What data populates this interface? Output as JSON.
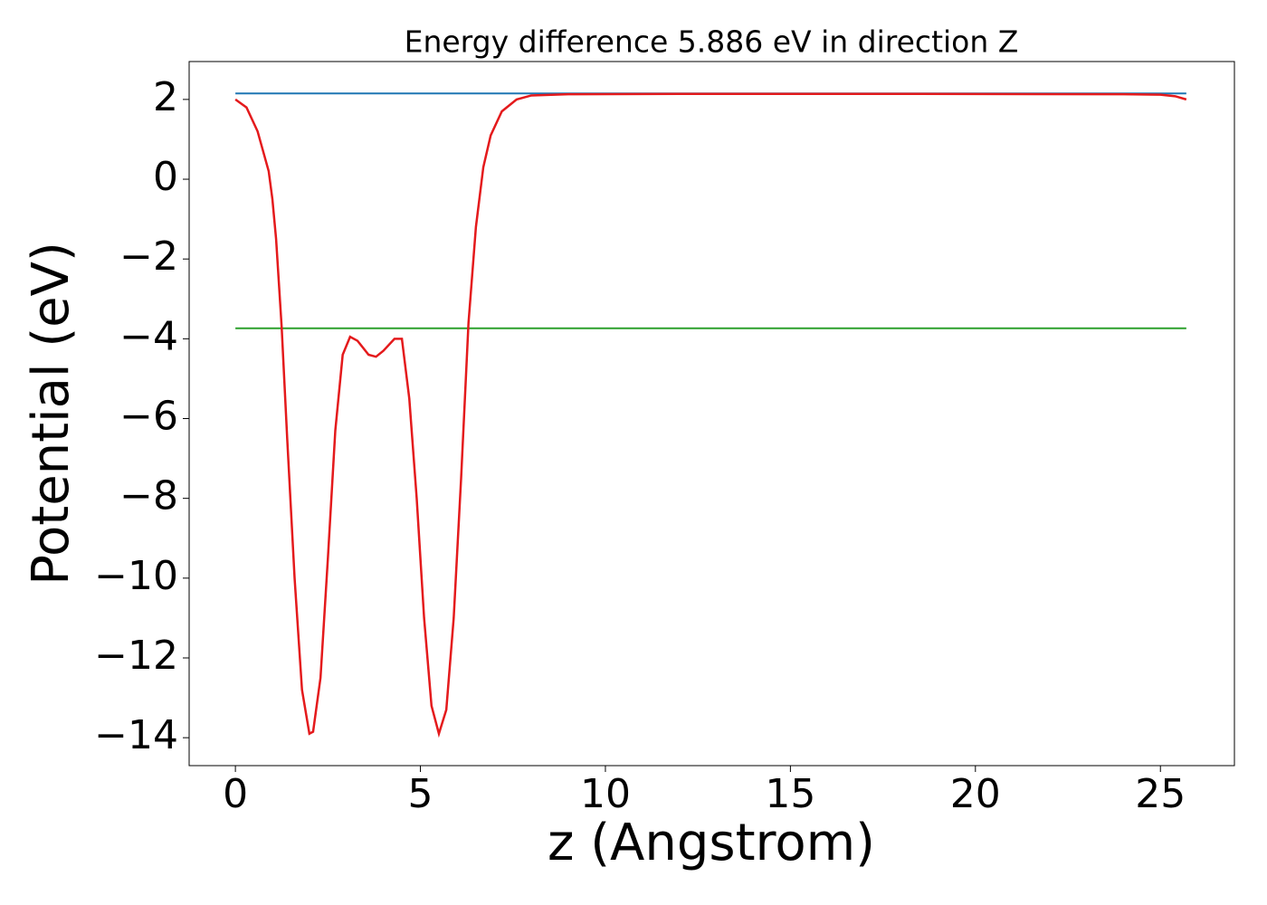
{
  "chart_data": {
    "type": "line",
    "title": "Energy difference 5.886 eV in direction Z",
    "x_label": "z (Angstrom)",
    "y_label": "Potential (eV)",
    "xlim": [
      -1.25,
      27.0
    ],
    "ylim": [
      -14.7,
      2.95
    ],
    "xticks": [
      0,
      5,
      10,
      15,
      20,
      25
    ],
    "yticks": [
      2,
      0,
      {
        "value": -2,
        "label": "−2"
      },
      {
        "value": -4,
        "label": "−4"
      },
      {
        "value": -6,
        "label": "−6"
      },
      {
        "value": -8,
        "label": "−8"
      },
      {
        "value": -10,
        "label": "−10"
      },
      {
        "value": -12,
        "label": "−12"
      },
      {
        "value": -14,
        "label": "−14"
      }
    ],
    "series": [
      {
        "color": "#1f77b4",
        "x": [
          0,
          25.7
        ],
        "values": [
          2.15,
          2.15
        ]
      },
      {
        "color": "#2ca02c",
        "x": [
          0,
          25.7
        ],
        "values": [
          -3.736,
          -3.736
        ]
      },
      {
        "color": "#e41a1c",
        "x": [
          0,
          0.3,
          0.6,
          0.9,
          1.0,
          1.1,
          1.25,
          1.4,
          1.6,
          1.8,
          2.0,
          2.1,
          2.3,
          2.5,
          2.7,
          2.9,
          3.1,
          3.3,
          3.6,
          3.8,
          4.0,
          4.3,
          4.5,
          4.7,
          4.9,
          5.1,
          5.3,
          5.5,
          5.7,
          5.9,
          6.1,
          6.3,
          6.5,
          6.7,
          6.9,
          7.2,
          7.6,
          8.0,
          9,
          12,
          18,
          24,
          25,
          25.4,
          25.7
        ],
        "values": [
          2.0,
          1.8,
          1.2,
          0.2,
          -0.5,
          -1.5,
          -3.7,
          -6.5,
          -10,
          -12.8,
          -13.9,
          -13.85,
          -12.5,
          -9.5,
          -6.3,
          -4.4,
          -3.95,
          -4.05,
          -4.4,
          -4.45,
          -4.3,
          -4.0,
          -4.0,
          -5.5,
          -8,
          -11,
          -13.2,
          -13.9,
          -13.3,
          -11,
          -7.5,
          -3.6,
          -1.2,
          0.3,
          1.1,
          1.7,
          2.0,
          2.1,
          2.13,
          2.14,
          2.14,
          2.13,
          2.12,
          2.08,
          2.0
        ]
      }
    ]
  }
}
